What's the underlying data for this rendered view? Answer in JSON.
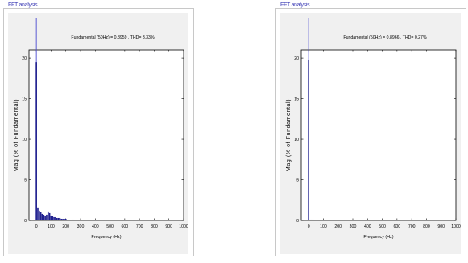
{
  "panels": [
    {
      "group_title": "FFT analysis",
      "chart_data": {
        "type": "bar",
        "title": "Fundamental (50Hz) = 0.8959 , THD= 3.33%",
        "xlabel": "Frequency (Hz)",
        "ylabel": "Mag (% of Fundamental)",
        "xlim": [
          -50,
          1000
        ],
        "ylim": [
          0,
          21
        ],
        "xticks": [
          "0",
          "100",
          "200",
          "300",
          "400",
          "500",
          "600",
          "700",
          "800",
          "900",
          "1000"
        ],
        "yticks": [
          "0",
          "5",
          "10",
          "15",
          "20"
        ],
        "x": [
          0,
          10,
          20,
          30,
          40,
          50,
          60,
          70,
          80,
          90,
          100,
          110,
          120,
          130,
          140,
          150,
          160,
          170,
          180,
          190,
          200,
          250,
          300
        ],
        "values": [
          19.5,
          1.6,
          1.2,
          1.0,
          0.8,
          0.7,
          0.6,
          0.7,
          1.1,
          0.9,
          0.6,
          0.5,
          0.4,
          0.4,
          0.3,
          0.3,
          0.3,
          0.2,
          0.2,
          0.2,
          0.2,
          0.1,
          0.1
        ],
        "fundamental": 100
      }
    },
    {
      "group_title": "FFT analysis",
      "chart_data": {
        "type": "bar",
        "title": "Fundamental (50Hz) = 0.8966 , THD= 0.27%",
        "xlabel": "Frequency (Hz)",
        "ylabel": "Mag (% of Fundamental)",
        "xlim": [
          -50,
          1000
        ],
        "ylim": [
          0,
          21
        ],
        "xticks": [
          "0",
          "100",
          "200",
          "300",
          "400",
          "500",
          "600",
          "700",
          "800",
          "900",
          "1000"
        ],
        "yticks": [
          "0",
          "5",
          "10",
          "15",
          "20"
        ],
        "x": [
          0,
          10,
          20,
          30
        ],
        "values": [
          19.8,
          0.1,
          0.1,
          0.1
        ],
        "fundamental": 100
      }
    }
  ],
  "colors": {
    "bar": "#1f1f8f",
    "fundamental_line": "#4a4ad0",
    "axis": "#000000",
    "plot_bg": "#ffffff",
    "frame_bg": "#f0f0f0"
  }
}
